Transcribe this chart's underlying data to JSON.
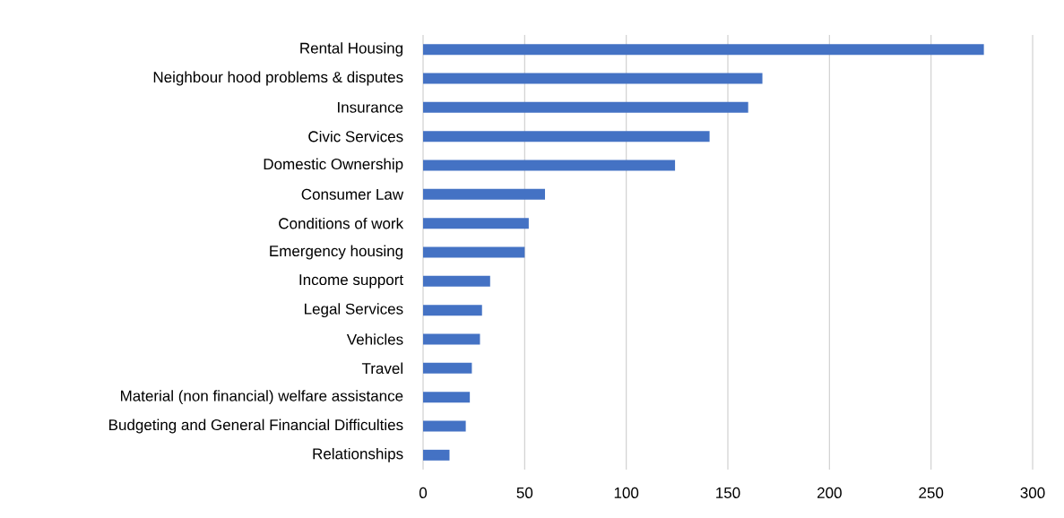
{
  "chart_data": {
    "type": "bar",
    "orientation": "horizontal",
    "categories": [
      "Rental Housing",
      "Neighbour hood problems & disputes",
      "Insurance",
      "Civic Services",
      "Domestic Ownership",
      "Consumer Law",
      "Conditions of work",
      "Emergency housing",
      "Income support",
      "Legal Services",
      "Vehicles",
      "Travel",
      "Material (non financial) welfare assistance",
      "Budgeting and General Financial Difficulties",
      "Relationships"
    ],
    "values": [
      276,
      167,
      160,
      141,
      124,
      60,
      52,
      50,
      33,
      29,
      28,
      24,
      23,
      21,
      13
    ],
    "color": "#4472c4",
    "xlim": [
      0,
      300
    ],
    "xticks": [
      0,
      50,
      100,
      150,
      200,
      250,
      300
    ],
    "grid": "x"
  }
}
